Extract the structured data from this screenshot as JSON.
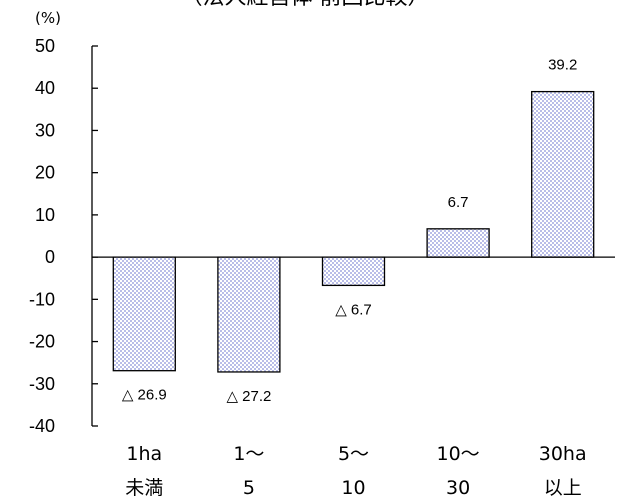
{
  "chart_data": {
    "type": "bar",
    "title": "（法人経営体 前回比較）",
    "unit_label": "(%)",
    "categories": [
      [
        "1ha",
        "未満"
      ],
      [
        "1～",
        "5"
      ],
      [
        "5～",
        "10"
      ],
      [
        "10～",
        "30"
      ],
      [
        "30ha",
        "以上"
      ]
    ],
    "values": [
      -26.9,
      -27.2,
      -6.7,
      6.7,
      39.2
    ],
    "data_labels": [
      "△ 26.9",
      "△ 27.2",
      "△ 6.7",
      "6.7",
      "39.2"
    ],
    "y_ticks": [
      50,
      40,
      30,
      20,
      10,
      0,
      -10,
      -20,
      -30,
      -40
    ],
    "ylim": [
      -40,
      50
    ],
    "grid": false,
    "bar_fill": "#b9bde8",
    "bar_pattern": "#ffffff",
    "bar_stroke": "#000000"
  }
}
